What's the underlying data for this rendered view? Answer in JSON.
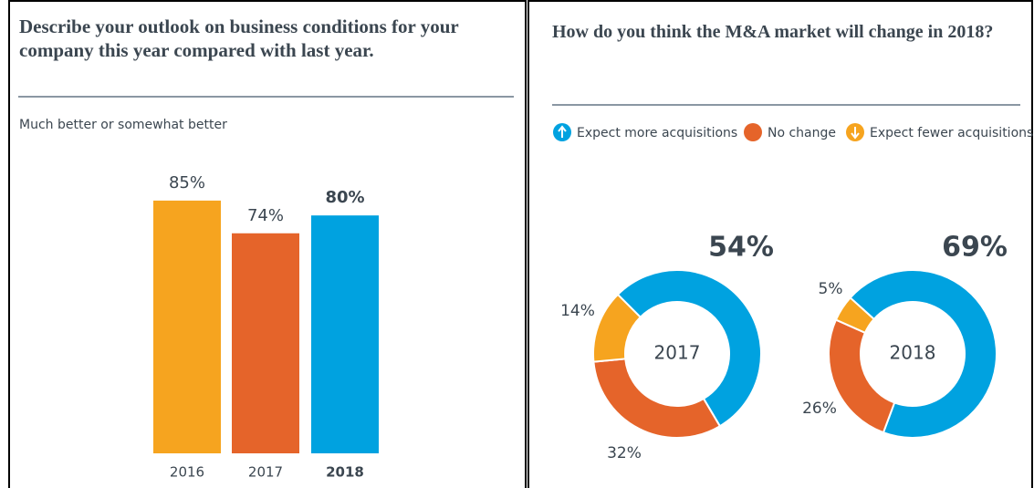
{
  "chart_data": [
    {
      "type": "bar",
      "title": "Describe your outlook on business conditions for your company this year compared with last year.",
      "subtitle": "Much better or somewhat better",
      "categories": [
        "2016",
        "2017",
        "2018"
      ],
      "values": [
        85,
        74,
        80
      ],
      "value_labels": [
        "85%",
        "74%",
        "80%"
      ],
      "colors": [
        "#f6a41f",
        "#e5642a",
        "#00a2e0"
      ]
    },
    {
      "type": "donut",
      "title": "How do you think the M&A market will change in 2018?",
      "categories": [
        "Expect more acquisitions",
        "No change",
        "Expect fewer acquisitions"
      ],
      "colors": [
        "#00a2e0",
        "#e5642a",
        "#f6a41f"
      ],
      "pies": [
        {
          "label": "2017",
          "values": [
            54,
            32,
            14
          ],
          "value_labels": [
            "54%",
            "32%",
            "14%"
          ]
        },
        {
          "label": "2018",
          "values": [
            69,
            26,
            5
          ],
          "value_labels": [
            "69%",
            "26%",
            "5%"
          ]
        }
      ]
    }
  ]
}
